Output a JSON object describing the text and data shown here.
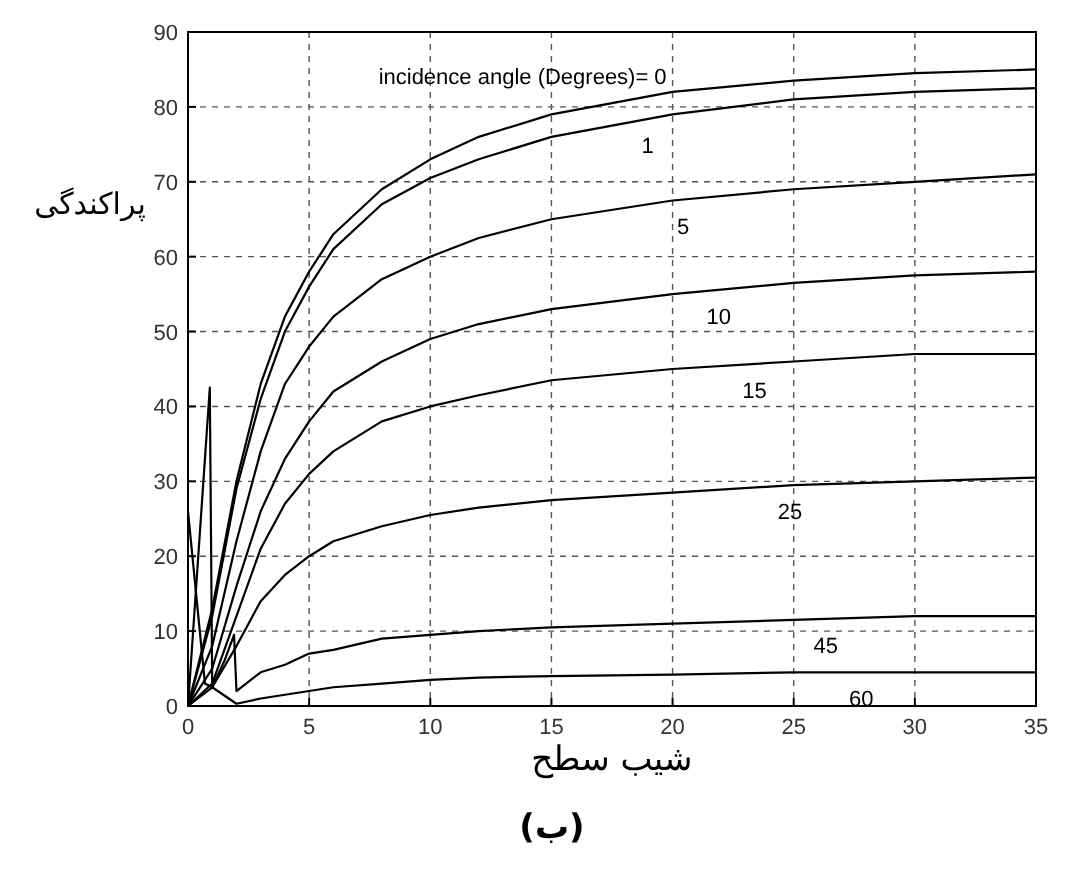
{
  "chart_data": {
    "type": "line",
    "xlabel": "شیب سطح",
    "ylabel": "پراکندگی",
    "xlim": [
      0,
      35
    ],
    "ylim": [
      0,
      90
    ],
    "xticks": [
      0,
      5,
      10,
      15,
      20,
      25,
      30,
      35
    ],
    "yticks": [
      0,
      10,
      20,
      30,
      40,
      50,
      60,
      70,
      80,
      90
    ],
    "grid": true,
    "line_style": "solid",
    "marker": "none",
    "series": [
      {
        "name": "0",
        "color": "#000000",
        "x": [
          0,
          1,
          2,
          3,
          4,
          5,
          6,
          8,
          10,
          12,
          15,
          20,
          25,
          30,
          35
        ],
        "values": [
          0,
          13,
          30,
          43,
          52,
          58,
          63,
          69,
          73,
          76,
          79,
          82,
          83.5,
          84.5,
          85
        ]
      },
      {
        "name": "1",
        "color": "#000000",
        "x": [
          0,
          1,
          2,
          3,
          4,
          5,
          6,
          8,
          10,
          12,
          15,
          20,
          25,
          30,
          35
        ],
        "values": [
          0,
          12,
          29,
          41,
          50,
          56,
          61,
          67,
          70.5,
          73,
          76,
          79,
          81,
          82,
          82.5
        ]
      },
      {
        "name": "5",
        "color": "#000000",
        "x": [
          0,
          1,
          2,
          3,
          4,
          5,
          6,
          8,
          10,
          12,
          15,
          20,
          25,
          30,
          35
        ],
        "values": [
          0,
          8,
          22,
          34,
          43,
          48,
          52,
          57,
          60,
          62.5,
          65,
          67.5,
          69,
          70,
          71
        ]
      },
      {
        "name": "10",
        "color": "#000000",
        "x": [
          0,
          1,
          2,
          3,
          4,
          5,
          6,
          8,
          10,
          12,
          15,
          20,
          25,
          30,
          35
        ],
        "values": [
          0,
          5,
          16,
          26,
          33,
          38,
          42,
          46,
          49,
          51,
          53,
          55,
          56.5,
          57.5,
          58
        ]
      },
      {
        "name": "15",
        "color": "#000000",
        "x": [
          0,
          1,
          2,
          3,
          4,
          5,
          6,
          8,
          10,
          12,
          15,
          20,
          25,
          30,
          35
        ],
        "values": [
          0,
          3,
          12,
          21,
          27,
          31,
          34,
          38,
          40,
          41.5,
          43.5,
          45,
          46,
          47,
          47
        ]
      },
      {
        "name": "25",
        "color": "#000000",
        "x": [
          0,
          1,
          2,
          3,
          4,
          5,
          6,
          8,
          10,
          12,
          15,
          20,
          25,
          30,
          35
        ],
        "values": [
          0,
          2.5,
          8,
          14,
          17.5,
          20,
          22,
          24,
          25.5,
          26.5,
          27.5,
          28.5,
          29.5,
          30,
          30.5
        ]
      },
      {
        "name": "45",
        "color": "#000000",
        "x": [
          0,
          0.7,
          1,
          1.5,
          1.9,
          2,
          3,
          4,
          5,
          6,
          8,
          10,
          12,
          15,
          20,
          25,
          30,
          35
        ],
        "values": [
          26,
          3,
          2.5,
          6,
          9.5,
          2,
          4.5,
          5.5,
          7,
          7.5,
          9,
          9.5,
          10,
          10.5,
          11,
          11.5,
          12,
          12
        ]
      },
      {
        "name": "60",
        "color": "#000000",
        "x": [
          0,
          0.9,
          1,
          2,
          3,
          4,
          5,
          6,
          8,
          10,
          12,
          15,
          20,
          25,
          30,
          35
        ],
        "values": [
          0,
          42.5,
          2.5,
          0.3,
          1,
          1.5,
          2,
          2.5,
          3,
          3.5,
          3.8,
          4,
          4.2,
          4.5,
          4.5,
          4.5
        ]
      }
    ],
    "annotations": [
      "incidence angle (Degrees)=",
      "(ب)"
    ]
  }
}
